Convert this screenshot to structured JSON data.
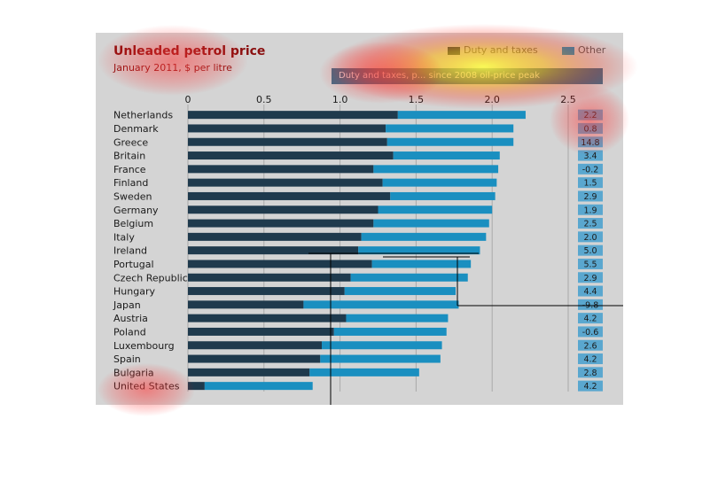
{
  "title": "Unleaded petrol price",
  "subtitle": "January 2011, $ per litre",
  "legend": [
    {
      "label": "Duty and taxes",
      "color": "#1f3a4d"
    },
    {
      "label": "Other",
      "color": "#1a8fc0"
    }
  ],
  "change_label": "Duty and taxes, p... since 2008 oil-price peak",
  "chart_data": {
    "type": "bar",
    "orientation": "horizontal",
    "stacked": true,
    "title": "Unleaded petrol price",
    "subtitle": "January 2011, $ per litre",
    "xlim": [
      0,
      2.5
    ],
    "xticks": [
      "0",
      "0.5",
      "1.0",
      "1.5",
      "2.0",
      "2.5"
    ],
    "categories": [
      "Netherlands",
      "Denmark",
      "Greece",
      "Britain",
      "France",
      "Finland",
      "Sweden",
      "Germany",
      "Belgium",
      "Italy",
      "Ireland",
      "Portugal",
      "Czech Republic",
      "Hungary",
      "Japan",
      "Austria",
      "Poland",
      "Luxembourg",
      "Spain",
      "Bulgaria",
      "United States"
    ],
    "series": [
      {
        "name": "Duty and taxes",
        "color": "#1f3a4d",
        "values": [
          1.38,
          1.3,
          1.31,
          1.35,
          1.22,
          1.28,
          1.33,
          1.25,
          1.22,
          1.14,
          1.12,
          1.21,
          1.07,
          1.03,
          0.76,
          1.04,
          0.96,
          0.88,
          0.87,
          0.8,
          0.11
        ]
      },
      {
        "name": "Other",
        "color": "#1a8fc0",
        "values": [
          0.84,
          0.84,
          0.83,
          0.7,
          0.82,
          0.75,
          0.69,
          0.75,
          0.76,
          0.82,
          0.8,
          0.65,
          0.77,
          0.73,
          1.02,
          0.67,
          0.74,
          0.79,
          0.79,
          0.72,
          0.71
        ]
      }
    ],
    "labels_column": [
      "2.2",
      "0.8",
      "14.8",
      "3.4",
      "-0.2",
      "1.5",
      "2.9",
      "1.9",
      "2.5",
      "2.0",
      "5.0",
      "5.5",
      "2.9",
      "4.4",
      "-9.8",
      "4.2",
      "-0.6",
      "2.6",
      "4.2",
      "2.8",
      "4.2"
    ],
    "grid": true
  }
}
